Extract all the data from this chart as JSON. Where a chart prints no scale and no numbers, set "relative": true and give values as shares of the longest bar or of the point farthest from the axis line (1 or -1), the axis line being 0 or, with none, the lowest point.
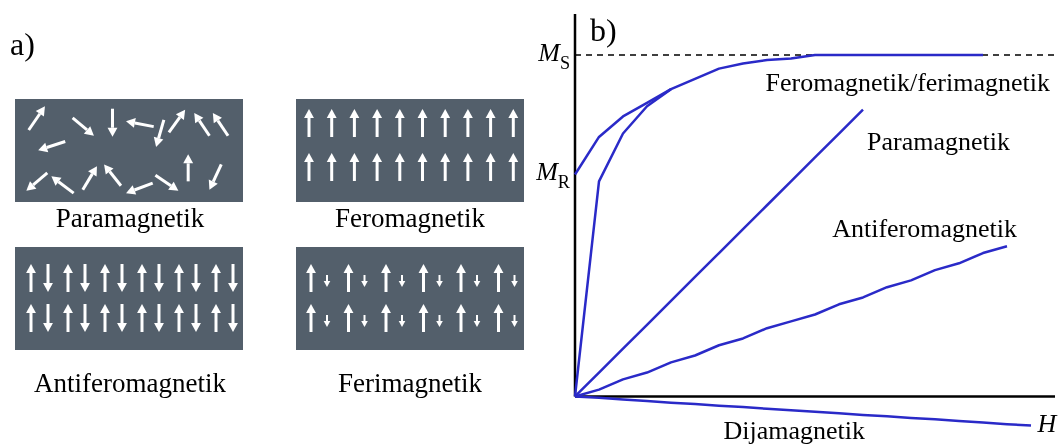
{
  "chart_data": [
    {
      "type": "other",
      "title": "a)",
      "annotations": [
        "Paramagnetik",
        "Feromagnetik",
        "Antiferomagnetik",
        "Ferimagnetik"
      ]
    },
    {
      "type": "line",
      "title": "b)",
      "xlabel": "H",
      "relative": true,
      "marker": "none",
      "categories": [
        null,
        null,
        null,
        null,
        null,
        null,
        null,
        null,
        null,
        null,
        null,
        null,
        null,
        null,
        null,
        null,
        null,
        null,
        null,
        null,
        null
      ],
      "series": [
        {
          "name": "Feromagnetik/ferimagnetik",
          "color": "#2a2ac8",
          "values": [
            0,
            0.63,
            0.77,
            0.85,
            0.9,
            0.93,
            0.96,
            0.975,
            0.985,
            0.99,
            1,
            1,
            1,
            1,
            1,
            1,
            1,
            1,
            null,
            null,
            null
          ]
        },
        {
          "color": "#2a2ac8",
          "values": [
            0.65,
            0.76,
            0.82,
            0.86,
            0.9,
            null,
            null,
            null,
            null,
            null,
            null,
            null,
            null,
            null,
            null,
            null,
            null,
            null,
            null,
            null,
            null
          ]
        },
        {
          "name": "Paramagnetik",
          "color": "#2a2ac8",
          "values": [
            0,
            0.07,
            0.14,
            0.21,
            0.28,
            0.35,
            0.42,
            0.49,
            0.56,
            0.63,
            0.7,
            0.77,
            0.84,
            null,
            null,
            null,
            null,
            null,
            null,
            null,
            null
          ]
        },
        {
          "name": "Antiferomagnetik",
          "color": "#2a2ac8",
          "values": [
            0,
            0.02,
            0.05,
            0.07,
            0.1,
            0.12,
            0.15,
            0.17,
            0.2,
            0.22,
            0.24,
            0.27,
            0.29,
            0.32,
            0.34,
            0.37,
            0.39,
            0.42,
            0.44,
            null,
            null
          ]
        },
        {
          "name": "Dijamagnetik",
          "color": "#2a2ac8",
          "values": [
            0,
            -0.004,
            -0.009,
            -0.013,
            -0.018,
            -0.022,
            -0.027,
            -0.031,
            -0.036,
            -0.04,
            -0.045,
            -0.049,
            -0.054,
            -0.058,
            -0.063,
            -0.067,
            -0.072,
            -0.076,
            -0.081,
            -0.085,
            null
          ]
        }
      ],
      "ref_lines": [
        {
          "axis": "y",
          "value": 1,
          "label": "M$_{S}$",
          "color": "#000000",
          "line_style": "dashed"
        }
      ],
      "annotations": [
        "M$_{R}$"
      ]
    }
  ]
}
